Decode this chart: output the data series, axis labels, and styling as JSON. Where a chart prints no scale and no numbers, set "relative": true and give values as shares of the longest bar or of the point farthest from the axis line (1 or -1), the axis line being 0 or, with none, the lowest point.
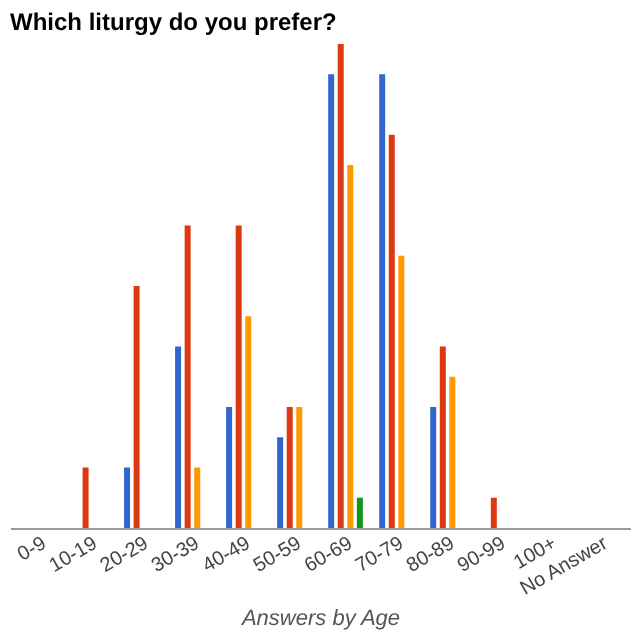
{
  "chart_data": {
    "type": "bar",
    "title": "Which liturgy do you prefer?",
    "xlabel": "Answers by Age",
    "relative": true,
    "categories": [
      "0-9",
      "10-19",
      "20-29",
      "30-39",
      "40-49",
      "50-59",
      "60-69",
      "70-79",
      "80-89",
      "90-99",
      "100+",
      "No Answer"
    ],
    "series": [
      {
        "color": "#3366cc",
        "values": [
          0,
          0,
          0.125,
          0.375,
          0.25,
          0.1875,
          0.9375,
          0.9375,
          0.25,
          0,
          0,
          0
        ]
      },
      {
        "color": "#dc3912",
        "values": [
          0,
          0.125,
          0.5,
          0.625,
          0.625,
          0.25,
          1,
          0.8125,
          0.375,
          0.0625,
          0,
          0
        ]
      },
      {
        "color": "#ff9900",
        "values": [
          0,
          0,
          0,
          0.125,
          0.4375,
          0.25,
          0.75,
          0.5625,
          0.3125,
          0,
          0,
          0
        ]
      },
      {
        "color": "#109618",
        "values": [
          0,
          0,
          0,
          0,
          0,
          0,
          0.0625,
          0,
          0,
          0,
          0,
          0
        ]
      }
    ]
  }
}
